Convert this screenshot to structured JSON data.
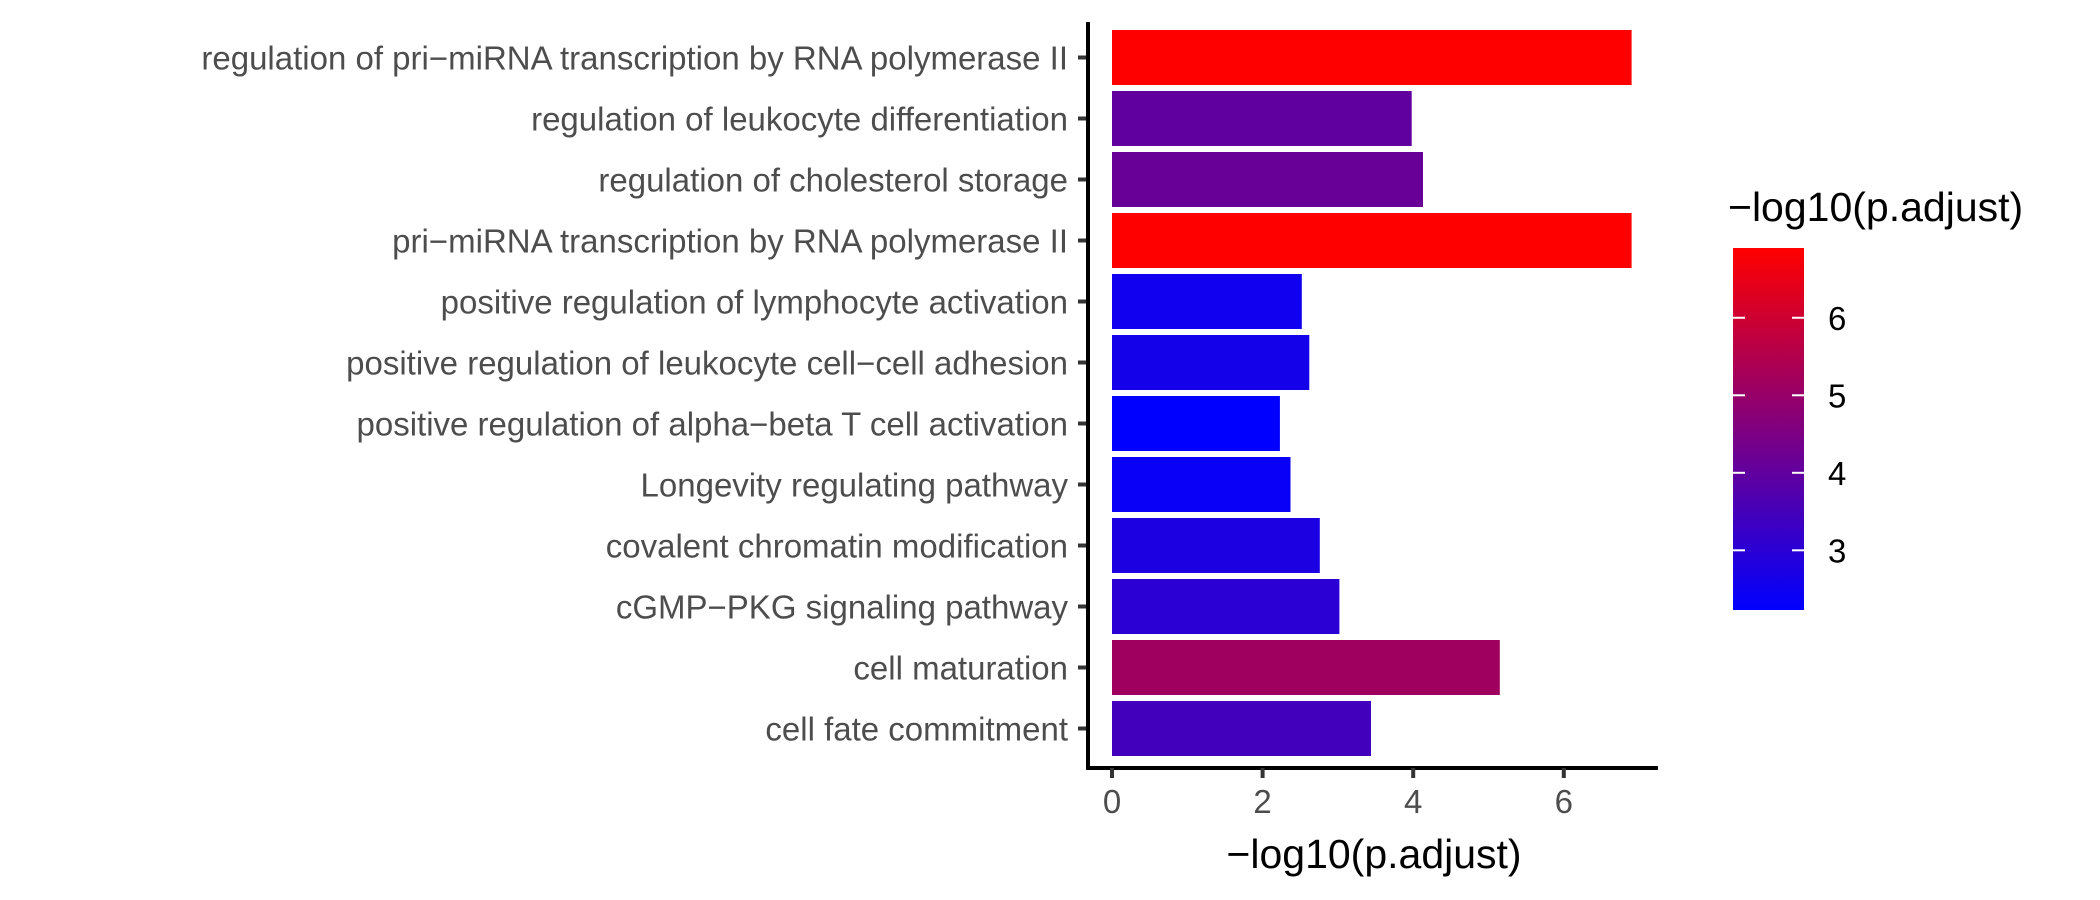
{
  "chart_data": {
    "type": "bar",
    "orientation": "horizontal",
    "categories": [
      "regulation of pri−miRNA transcription by RNA polymerase II",
      "regulation of leukocyte differentiation",
      "regulation of cholesterol storage",
      "pri−miRNA transcription by RNA polymerase II",
      "positive regulation of lymphocyte activation",
      "positive regulation of leukocyte cell−cell adhesion",
      "positive regulation of alpha−beta T cell activation",
      "Longevity regulating pathway",
      "covalent chromatin modification",
      "cGMP−PKG signaling pathway",
      "cell maturation",
      "cell fate commitment"
    ],
    "values": [
      6.9,
      3.98,
      4.13,
      6.9,
      2.52,
      2.62,
      2.23,
      2.37,
      2.76,
      3.02,
      5.15,
      3.44
    ],
    "xlabel": "−log10(p.adjust)",
    "ylabel": "",
    "xlim": [
      0,
      7.25
    ],
    "xticks": [
      "0",
      "2",
      "4",
      "6"
    ],
    "grid": false,
    "color_scale": {
      "title": "−log10(p.adjust)",
      "low": 2.23,
      "high": 6.9,
      "low_color": "#0000ff",
      "high_color": "#ff0000",
      "ticks": [
        "3",
        "4",
        "5",
        "6"
      ],
      "placement": "right"
    }
  }
}
